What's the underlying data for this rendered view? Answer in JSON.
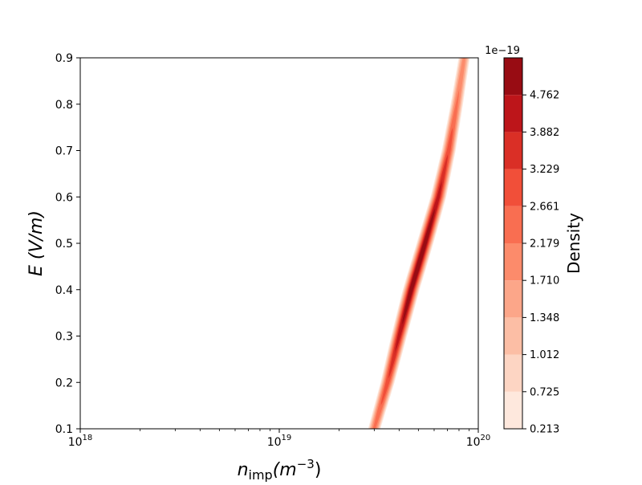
{
  "chart_data": {
    "type": "heatmap",
    "subtype": "filled-contour",
    "title": "",
    "xlabel": "n_imp(m^-3)",
    "xlabel_parts": {
      "base": "n",
      "sub": "imp",
      "unit_open": "(m",
      "sup": "−3",
      "unit_close": ")"
    },
    "ylabel": "E (V/m)",
    "xscale": "log",
    "xlim": [
      1e+18,
      1e+20
    ],
    "ylim": [
      0.1,
      0.9
    ],
    "xticks": [
      {
        "value": 1e+18,
        "base": "10",
        "exp": "18"
      },
      {
        "value": 1e+19,
        "base": "10",
        "exp": "19"
      },
      {
        "value": 1e+20,
        "base": "10",
        "exp": "20"
      }
    ],
    "yticks": [
      {
        "value": 0.1,
        "label": "0.1"
      },
      {
        "value": 0.2,
        "label": "0.2"
      },
      {
        "value": 0.3,
        "label": "0.3"
      },
      {
        "value": 0.4,
        "label": "0.4"
      },
      {
        "value": 0.5,
        "label": "0.5"
      },
      {
        "value": 0.6,
        "label": "0.6"
      },
      {
        "value": 0.7,
        "label": "0.7"
      },
      {
        "value": 0.8,
        "label": "0.8"
      },
      {
        "value": 0.9,
        "label": "0.9"
      }
    ],
    "density_ridge": [
      {
        "x": 3e+19,
        "y": 0.1
      },
      {
        "x": 3.5e+19,
        "y": 0.2
      },
      {
        "x": 4e+19,
        "y": 0.3
      },
      {
        "x": 4.6e+19,
        "y": 0.4
      },
      {
        "x": 5.4e+19,
        "y": 0.5
      },
      {
        "x": 6.3e+19,
        "y": 0.6
      },
      {
        "x": 7.1e+19,
        "y": 0.7
      },
      {
        "x": 7.8e+19,
        "y": 0.8
      },
      {
        "x": 8.5e+19,
        "y": 0.9
      }
    ],
    "peak_y": 0.45,
    "colorbar": {
      "label": "Density",
      "offset_label": "1e−19",
      "levels": [
        "0.213",
        "0.725",
        "1.012",
        "1.348",
        "1.710",
        "2.179",
        "2.661",
        "3.229",
        "3.882",
        "4.762"
      ],
      "colors": [
        "#fee8dd",
        "#fdd5c3",
        "#fcbea5",
        "#fca689",
        "#fc8b6b",
        "#f96e51",
        "#f14f39",
        "#da2f26",
        "#bd151a",
        "#980c13"
      ]
    }
  }
}
